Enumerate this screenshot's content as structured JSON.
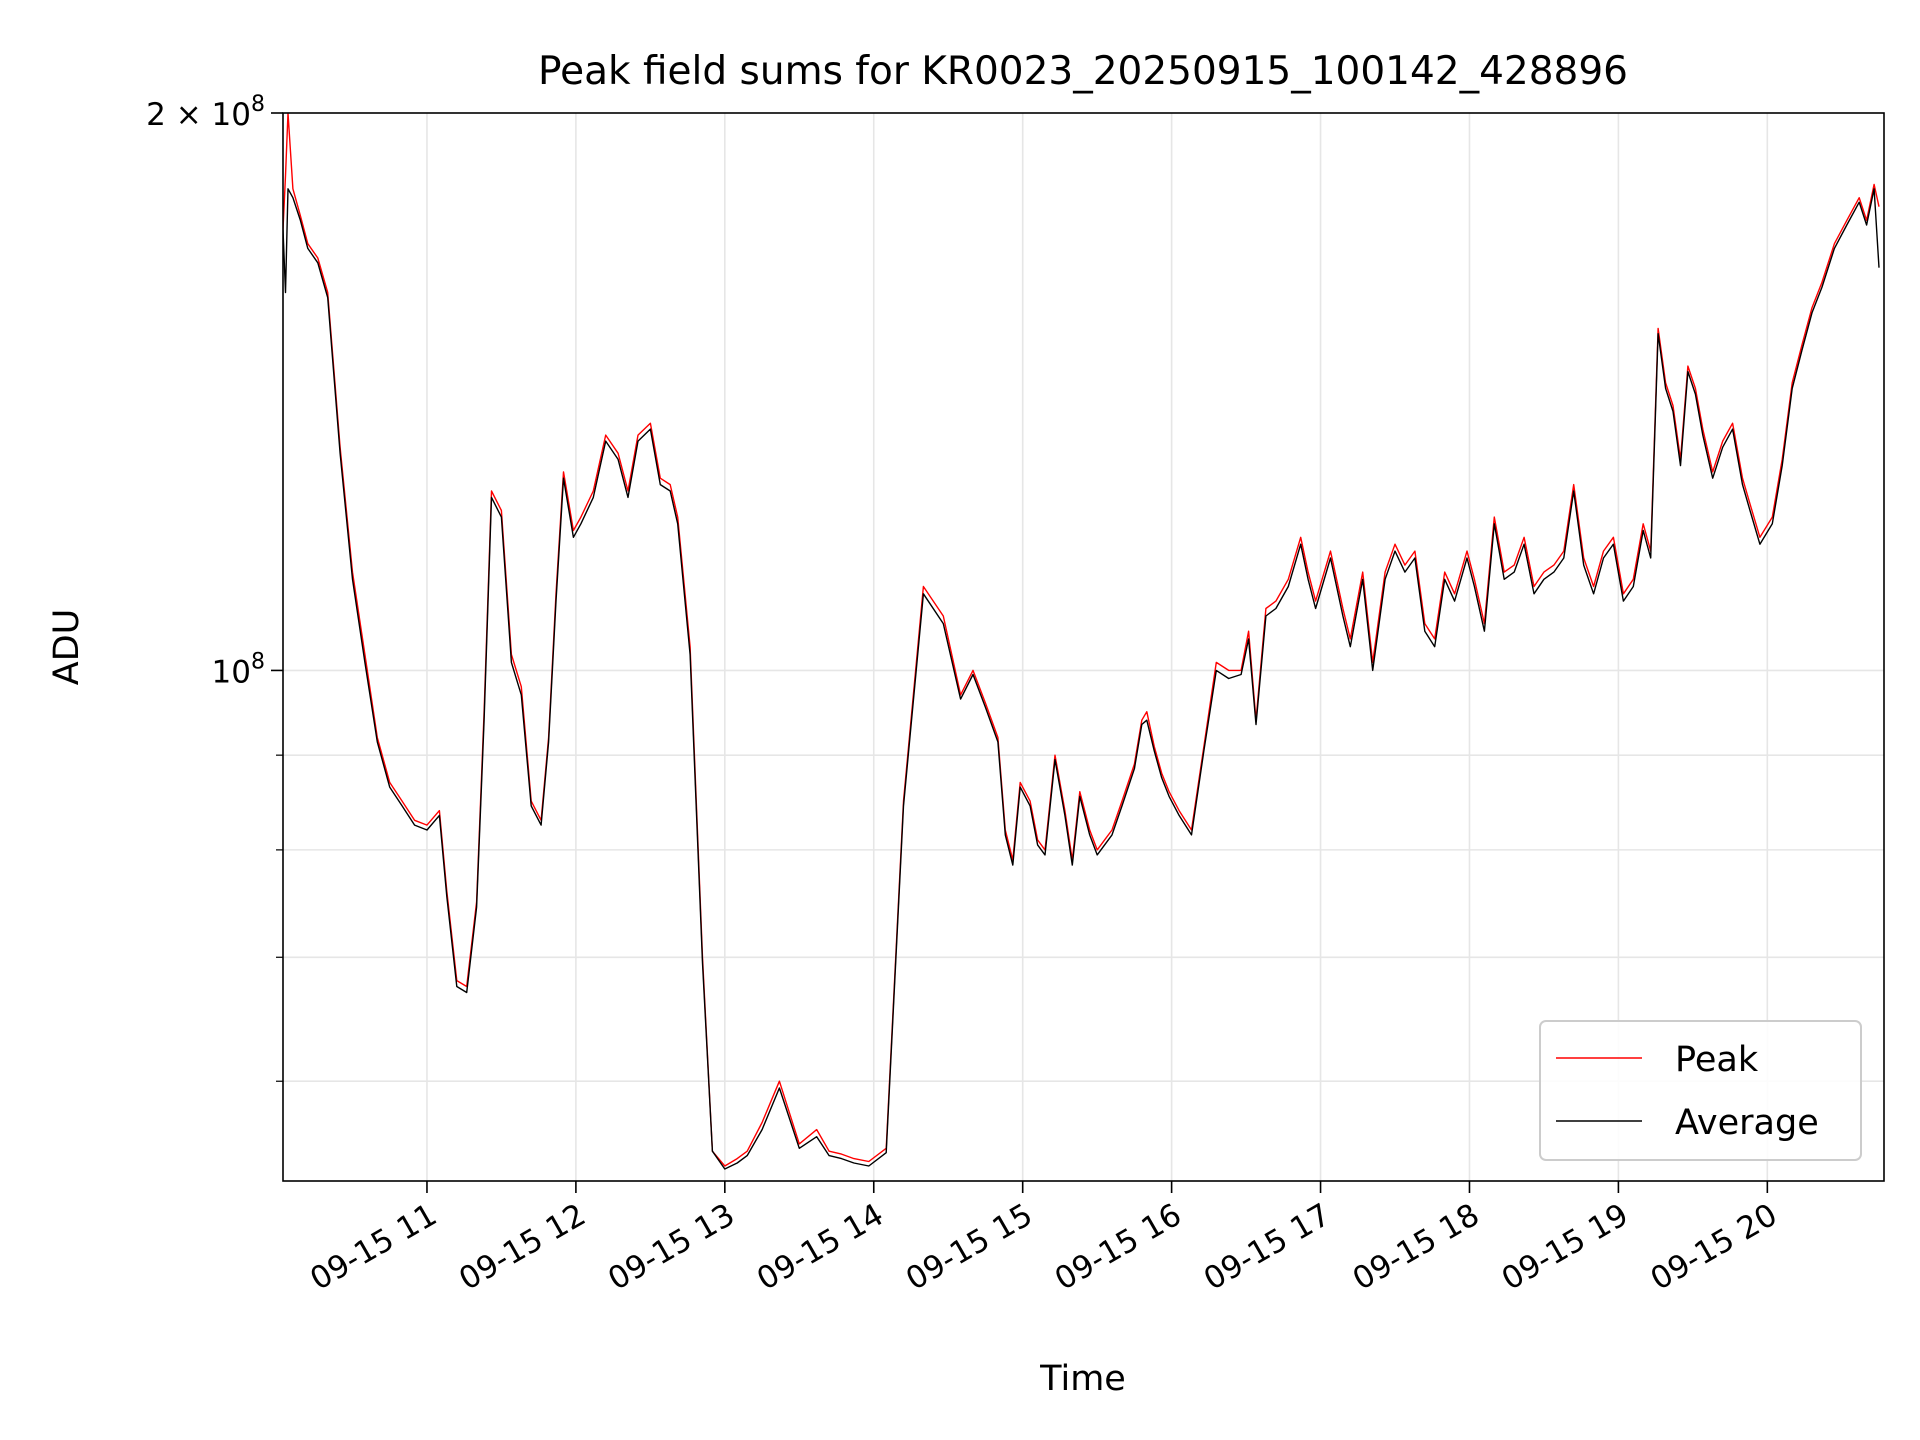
{
  "chart_data": {
    "type": "line",
    "title": "Peak field sums for KR0023_20250915_100142_428896",
    "xlabel": "Time",
    "ylabel": "ADU",
    "yscale": "log",
    "ylim": [
      53000000,
      200000000
    ],
    "xlim": [
      "2025-09-15 10:02",
      "2025-09-15 20:47"
    ],
    "grid": true,
    "legend_position": "lower right",
    "x_ticks": [
      "2025-09-15 11:00",
      "2025-09-15 12:00",
      "2025-09-15 13:00",
      "2025-09-15 14:00",
      "2025-09-15 15:00",
      "2025-09-15 16:00",
      "2025-09-15 17:00",
      "2025-09-15 18:00",
      "2025-09-15 19:00",
      "2025-09-15 20:00"
    ],
    "x_tick_labels": [
      "09-15 11",
      "09-15 12",
      "09-15 13",
      "09-15 14",
      "09-15 15",
      "09-15 16",
      "09-15 17",
      "09-15 18",
      "09-15 19",
      "09-15 20"
    ],
    "y_major_ticks": [
      {
        "value": 100000000,
        "label_base": "10",
        "label_exp": "8"
      },
      {
        "value": 200000000,
        "label_base": "2 × 10",
        "label_exp": "8"
      }
    ],
    "y_minor_ticks": [
      60000000,
      70000000,
      80000000,
      90000000
    ],
    "series": [
      {
        "name": "Peak",
        "color": "#ff0000",
        "x": [
          "2025-09-15 10:02",
          "2025-09-15 10:03",
          "2025-09-15 10:04",
          "2025-09-15 10:06",
          "2025-09-15 10:09",
          "2025-09-15 10:12",
          "2025-09-15 10:16",
          "2025-09-15 10:20",
          "2025-09-15 10:25",
          "2025-09-15 10:30",
          "2025-09-15 10:35",
          "2025-09-15 10:40",
          "2025-09-15 10:45",
          "2025-09-15 10:50",
          "2025-09-15 10:55",
          "2025-09-15 11:00",
          "2025-09-15 11:05",
          "2025-09-15 11:08",
          "2025-09-15 11:12",
          "2025-09-15 11:16",
          "2025-09-15 11:20",
          "2025-09-15 11:23",
          "2025-09-15 11:26",
          "2025-09-15 11:30",
          "2025-09-15 11:34",
          "2025-09-15 11:38",
          "2025-09-15 11:42",
          "2025-09-15 11:46",
          "2025-09-15 11:49",
          "2025-09-15 11:52",
          "2025-09-15 11:55",
          "2025-09-15 11:59",
          "2025-09-15 12:02",
          "2025-09-15 12:07",
          "2025-09-15 12:12",
          "2025-09-15 12:17",
          "2025-09-15 12:21",
          "2025-09-15 12:25",
          "2025-09-15 12:30",
          "2025-09-15 12:34",
          "2025-09-15 12:38",
          "2025-09-15 12:41",
          "2025-09-15 12:46",
          "2025-09-15 12:51",
          "2025-09-15 12:55",
          "2025-09-15 13:00",
          "2025-09-15 13:05",
          "2025-09-15 13:09",
          "2025-09-15 13:15",
          "2025-09-15 13:22",
          "2025-09-15 13:30",
          "2025-09-15 13:37",
          "2025-09-15 13:42",
          "2025-09-15 13:47",
          "2025-09-15 13:52",
          "2025-09-15 13:58",
          "2025-09-15 14:05",
          "2025-09-15 14:12",
          "2025-09-15 14:20",
          "2025-09-15 14:28",
          "2025-09-15 14:35",
          "2025-09-15 14:40",
          "2025-09-15 14:45",
          "2025-09-15 14:50",
          "2025-09-15 14:53",
          "2025-09-15 14:56",
          "2025-09-15 14:59",
          "2025-09-15 15:03",
          "2025-09-15 15:06",
          "2025-09-15 15:09",
          "2025-09-15 15:13",
          "2025-09-15 15:17",
          "2025-09-15 15:20",
          "2025-09-15 15:23",
          "2025-09-15 15:27",
          "2025-09-15 15:30",
          "2025-09-15 15:33",
          "2025-09-15 15:36",
          "2025-09-15 15:40",
          "2025-09-15 15:45",
          "2025-09-15 15:48",
          "2025-09-15 15:50",
          "2025-09-15 15:53",
          "2025-09-15 15:56",
          "2025-09-15 15:59",
          "2025-09-15 16:03",
          "2025-09-15 16:08",
          "2025-09-15 16:13",
          "2025-09-15 16:18",
          "2025-09-15 16:23",
          "2025-09-15 16:28",
          "2025-09-15 16:31",
          "2025-09-15 16:34",
          "2025-09-15 16:38",
          "2025-09-15 16:42",
          "2025-09-15 16:47",
          "2025-09-15 16:52",
          "2025-09-15 16:55",
          "2025-09-15 16:58",
          "2025-09-15 17:04",
          "2025-09-15 17:09",
          "2025-09-15 17:12",
          "2025-09-15 17:17",
          "2025-09-15 17:21",
          "2025-09-15 17:26",
          "2025-09-15 17:30",
          "2025-09-15 17:34",
          "2025-09-15 17:38",
          "2025-09-15 17:42",
          "2025-09-15 17:46",
          "2025-09-15 17:50",
          "2025-09-15 17:54",
          "2025-09-15 17:59",
          "2025-09-15 18:02",
          "2025-09-15 18:06",
          "2025-09-15 18:10",
          "2025-09-15 18:14",
          "2025-09-15 18:18",
          "2025-09-15 18:22",
          "2025-09-15 18:26",
          "2025-09-15 18:30",
          "2025-09-15 18:34",
          "2025-09-15 18:38",
          "2025-09-15 18:42",
          "2025-09-15 18:46",
          "2025-09-15 18:50",
          "2025-09-15 18:54",
          "2025-09-15 18:58",
          "2025-09-15 19:02",
          "2025-09-15 19:06",
          "2025-09-15 19:10",
          "2025-09-15 19:13",
          "2025-09-15 19:16",
          "2025-09-15 19:19",
          "2025-09-15 19:22",
          "2025-09-15 19:25",
          "2025-09-15 19:28",
          "2025-09-15 19:31",
          "2025-09-15 19:34",
          "2025-09-15 19:38",
          "2025-09-15 19:42",
          "2025-09-15 19:46",
          "2025-09-15 19:50",
          "2025-09-15 19:53",
          "2025-09-15 19:57",
          "2025-09-15 20:02",
          "2025-09-15 20:06",
          "2025-09-15 20:10",
          "2025-09-15 20:14",
          "2025-09-15 20:18",
          "2025-09-15 20:22",
          "2025-09-15 20:27",
          "2025-09-15 20:32",
          "2025-09-15 20:37",
          "2025-09-15 20:40",
          "2025-09-15 20:43",
          "2025-09-15 20:45"
        ],
        "values": [
          173000000,
          185000000,
          200000000,
          182000000,
          176000000,
          170000000,
          167000000,
          160000000,
          132000000,
          113000000,
          102000000,
          92000000,
          87000000,
          85000000,
          83000000,
          82500000,
          84000000,
          76000000,
          68000000,
          67500000,
          75000000,
          95000000,
          125000000,
          122000000,
          102000000,
          98000000,
          85000000,
          83000000,
          92000000,
          110000000,
          128000000,
          119000000,
          121000000,
          125000000,
          134000000,
          131000000,
          125000000,
          134000000,
          136000000,
          127000000,
          126000000,
          121000000,
          103000000,
          70000000,
          55000000,
          54000000,
          54500000,
          55000000,
          57000000,
          60000000,
          55500000,
          56500000,
          55000000,
          54800000,
          54500000,
          54300000,
          55200000,
          85000000,
          111000000,
          107000000,
          97000000,
          100000000,
          96000000,
          92000000,
          82000000,
          79000000,
          87000000,
          85000000,
          81000000,
          80000000,
          90000000,
          84000000,
          79000000,
          86000000,
          82000000,
          80000000,
          81000000,
          82000000,
          85000000,
          89000000,
          94000000,
          95000000,
          91000000,
          88000000,
          86000000,
          84000000,
          82000000,
          91000000,
          101000000,
          100000000,
          100000000,
          105000000,
          94000000,
          108000000,
          109000000,
          112000000,
          118000000,
          113000000,
          109000000,
          116000000,
          108000000,
          104000000,
          113000000,
          101000000,
          113000000,
          117000000,
          114000000,
          116000000,
          106000000,
          104000000,
          113000000,
          110000000,
          116000000,
          112000000,
          106000000,
          121000000,
          113000000,
          114000000,
          118000000,
          111000000,
          113000000,
          114000000,
          116000000,
          126000000,
          115000000,
          111000000,
          116000000,
          118000000,
          110000000,
          112000000,
          120000000,
          116000000,
          153000000,
          143000000,
          139000000,
          130000000,
          146000000,
          142000000,
          135000000,
          128000000,
          133000000,
          136000000,
          127000000,
          123000000,
          118000000,
          121000000,
          130000000,
          143000000,
          150000000,
          157000000,
          162000000,
          170000000,
          175000000,
          180000000,
          175000000,
          183000000,
          178000000
        ]
      },
      {
        "name": "Average",
        "color": "#000000",
        "x": [
          "2025-09-15 10:02",
          "2025-09-15 10:03",
          "2025-09-15 10:04",
          "2025-09-15 10:06",
          "2025-09-15 10:09",
          "2025-09-15 10:12",
          "2025-09-15 10:16",
          "2025-09-15 10:20",
          "2025-09-15 10:25",
          "2025-09-15 10:30",
          "2025-09-15 10:35",
          "2025-09-15 10:40",
          "2025-09-15 10:45",
          "2025-09-15 10:50",
          "2025-09-15 10:55",
          "2025-09-15 11:00",
          "2025-09-15 11:05",
          "2025-09-15 11:08",
          "2025-09-15 11:12",
          "2025-09-15 11:16",
          "2025-09-15 11:20",
          "2025-09-15 11:23",
          "2025-09-15 11:26",
          "2025-09-15 11:30",
          "2025-09-15 11:34",
          "2025-09-15 11:38",
          "2025-09-15 11:42",
          "2025-09-15 11:46",
          "2025-09-15 11:49",
          "2025-09-15 11:52",
          "2025-09-15 11:55",
          "2025-09-15 11:59",
          "2025-09-15 12:02",
          "2025-09-15 12:07",
          "2025-09-15 12:12",
          "2025-09-15 12:17",
          "2025-09-15 12:21",
          "2025-09-15 12:25",
          "2025-09-15 12:30",
          "2025-09-15 12:34",
          "2025-09-15 12:38",
          "2025-09-15 12:41",
          "2025-09-15 12:46",
          "2025-09-15 12:51",
          "2025-09-15 12:55",
          "2025-09-15 13:00",
          "2025-09-15 13:05",
          "2025-09-15 13:09",
          "2025-09-15 13:15",
          "2025-09-15 13:22",
          "2025-09-15 13:30",
          "2025-09-15 13:37",
          "2025-09-15 13:42",
          "2025-09-15 13:47",
          "2025-09-15 13:52",
          "2025-09-15 13:58",
          "2025-09-15 14:05",
          "2025-09-15 14:12",
          "2025-09-15 14:20",
          "2025-09-15 14:28",
          "2025-09-15 14:35",
          "2025-09-15 14:40",
          "2025-09-15 14:45",
          "2025-09-15 14:50",
          "2025-09-15 14:53",
          "2025-09-15 14:56",
          "2025-09-15 14:59",
          "2025-09-15 15:03",
          "2025-09-15 15:06",
          "2025-09-15 15:09",
          "2025-09-15 15:13",
          "2025-09-15 15:17",
          "2025-09-15 15:20",
          "2025-09-15 15:23",
          "2025-09-15 15:27",
          "2025-09-15 15:30",
          "2025-09-15 15:33",
          "2025-09-15 15:36",
          "2025-09-15 15:40",
          "2025-09-15 15:45",
          "2025-09-15 15:48",
          "2025-09-15 15:50",
          "2025-09-15 15:53",
          "2025-09-15 15:56",
          "2025-09-15 15:59",
          "2025-09-15 16:03",
          "2025-09-15 16:08",
          "2025-09-15 16:13",
          "2025-09-15 16:18",
          "2025-09-15 16:23",
          "2025-09-15 16:28",
          "2025-09-15 16:31",
          "2025-09-15 16:34",
          "2025-09-15 16:38",
          "2025-09-15 16:42",
          "2025-09-15 16:47",
          "2025-09-15 16:52",
          "2025-09-15 16:55",
          "2025-09-15 16:58",
          "2025-09-15 17:04",
          "2025-09-15 17:09",
          "2025-09-15 17:12",
          "2025-09-15 17:17",
          "2025-09-15 17:21",
          "2025-09-15 17:26",
          "2025-09-15 17:30",
          "2025-09-15 17:34",
          "2025-09-15 17:38",
          "2025-09-15 17:42",
          "2025-09-15 17:46",
          "2025-09-15 17:50",
          "2025-09-15 17:54",
          "2025-09-15 17:59",
          "2025-09-15 18:02",
          "2025-09-15 18:06",
          "2025-09-15 18:10",
          "2025-09-15 18:14",
          "2025-09-15 18:18",
          "2025-09-15 18:22",
          "2025-09-15 18:26",
          "2025-09-15 18:30",
          "2025-09-15 18:34",
          "2025-09-15 18:38",
          "2025-09-15 18:42",
          "2025-09-15 18:46",
          "2025-09-15 18:50",
          "2025-09-15 18:54",
          "2025-09-15 18:58",
          "2025-09-15 19:02",
          "2025-09-15 19:06",
          "2025-09-15 19:10",
          "2025-09-15 19:13",
          "2025-09-15 19:16",
          "2025-09-15 19:19",
          "2025-09-15 19:22",
          "2025-09-15 19:25",
          "2025-09-15 19:28",
          "2025-09-15 19:31",
          "2025-09-15 19:34",
          "2025-09-15 19:38",
          "2025-09-15 19:42",
          "2025-09-15 19:46",
          "2025-09-15 19:50",
          "2025-09-15 19:53",
          "2025-09-15 19:57",
          "2025-09-15 20:02",
          "2025-09-15 20:06",
          "2025-09-15 20:10",
          "2025-09-15 20:14",
          "2025-09-15 20:18",
          "2025-09-15 20:22",
          "2025-09-15 20:27",
          "2025-09-15 20:32",
          "2025-09-15 20:37",
          "2025-09-15 20:40",
          "2025-09-15 20:43",
          "2025-09-15 20:45"
        ],
        "values": [
          173000000,
          160000000,
          182000000,
          180000000,
          175000000,
          169000000,
          166000000,
          159000000,
          131000000,
          112000000,
          101000000,
          91500000,
          86500000,
          84500000,
          82500000,
          82000000,
          83500000,
          75500000,
          67500000,
          67000000,
          74500000,
          94000000,
          124000000,
          121000000,
          101000000,
          97000000,
          84500000,
          82500000,
          91500000,
          109000000,
          127000000,
          118000000,
          120000000,
          124000000,
          133000000,
          130000000,
          124000000,
          133000000,
          135000000,
          126000000,
          125000000,
          120000000,
          102000000,
          69500000,
          55000000,
          53800000,
          54200000,
          54700000,
          56500000,
          59500000,
          55200000,
          56000000,
          54700000,
          54500000,
          54200000,
          54000000,
          54900000,
          84500000,
          110000000,
          106000000,
          96500000,
          99500000,
          95500000,
          91500000,
          81500000,
          78500000,
          86500000,
          84500000,
          80500000,
          79500000,
          89500000,
          83500000,
          78500000,
          85500000,
          81500000,
          79500000,
          80500000,
          81500000,
          84500000,
          88500000,
          93500000,
          94000000,
          90500000,
          87500000,
          85500000,
          83500000,
          81500000,
          90500000,
          100000000,
          99000000,
          99500000,
          104000000,
          93500000,
          107000000,
          108000000,
          111000000,
          117000000,
          112000000,
          108000000,
          115000000,
          107000000,
          103000000,
          112000000,
          100000000,
          112000000,
          116000000,
          113000000,
          115000000,
          105000000,
          103000000,
          112000000,
          109000000,
          115000000,
          111000000,
          105000000,
          120000000,
          112000000,
          113000000,
          117000000,
          110000000,
          112000000,
          113000000,
          115000000,
          125000000,
          114000000,
          110000000,
          115000000,
          117000000,
          109000000,
          111000000,
          119000000,
          115000000,
          152000000,
          142000000,
          138000000,
          129000000,
          145000000,
          141000000,
          134000000,
          127000000,
          132000000,
          135000000,
          126000000,
          122000000,
          117000000,
          120000000,
          129000000,
          142000000,
          149000000,
          156000000,
          161000000,
          169000000,
          174000000,
          179000000,
          174000000,
          182000000,
          165000000
        ]
      }
    ]
  }
}
